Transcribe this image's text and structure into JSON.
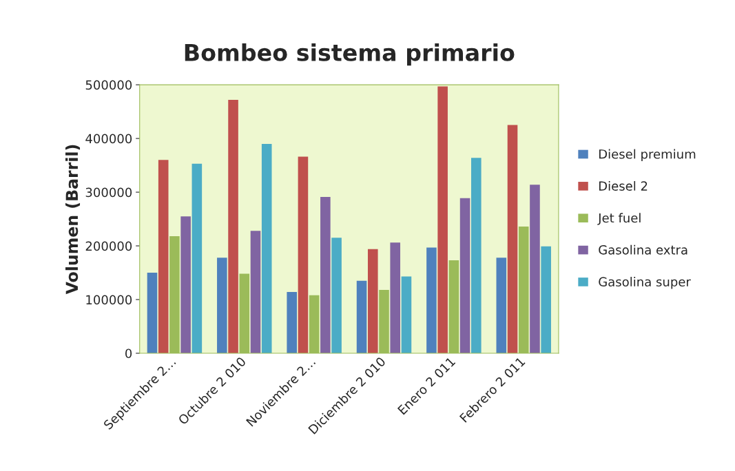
{
  "chart_data": {
    "type": "bar",
    "title": "Bombeo sistema primario",
    "ylabel": "Volumen (Barril)",
    "categories": [
      "Septiembre 2…",
      "Octubre 2 010",
      "Noviembre 2…",
      "Diciembre 2 010",
      "Enero 2 011",
      "Febrero 2 011"
    ],
    "series": [
      {
        "name": "Diesel premium",
        "color": "#4f81bd",
        "values": [
          150000,
          178000,
          114000,
          135000,
          197000,
          178000
        ]
      },
      {
        "name": "Diesel 2",
        "color": "#c0504d",
        "values": [
          360000,
          472000,
          366000,
          194000,
          497000,
          425000
        ]
      },
      {
        "name": "Jet fuel",
        "color": "#9bbb59",
        "values": [
          218000,
          148000,
          108000,
          118000,
          173000,
          236000
        ]
      },
      {
        "name": "Gasolina extra",
        "color": "#8064a2",
        "values": [
          255000,
          228000,
          291000,
          206000,
          289000,
          314000
        ]
      },
      {
        "name": "Gasolina super",
        "color": "#4bacc6",
        "values": [
          353000,
          390000,
          215000,
          143000,
          364000,
          199000
        ]
      }
    ],
    "ylim": [
      0,
      500000
    ],
    "yticks": [
      0,
      100000,
      200000,
      300000,
      400000,
      500000
    ],
    "grid": false,
    "legend": "right"
  }
}
